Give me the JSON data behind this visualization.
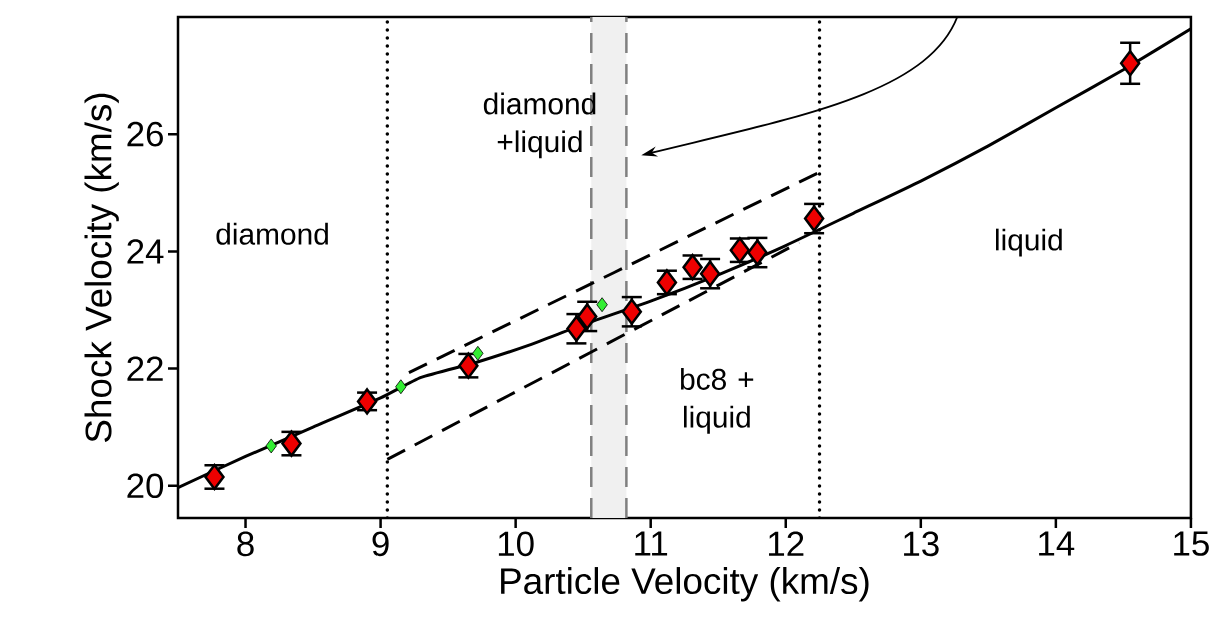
{
  "chart_data": {
    "type": "scatter",
    "xlabel": "Particle Velocity (km/s)",
    "ylabel": "Shock Velocity (km/s)",
    "xlim": [
      7.5,
      15
    ],
    "ylim": [
      19.45,
      28
    ],
    "xticks": [
      8,
      9,
      10,
      11,
      12,
      13,
      14,
      15
    ],
    "yticks": [
      20,
      22,
      24,
      26
    ],
    "annotations": [
      "diamond",
      "diamond +liquid",
      "bc8 + liquid",
      "liquid"
    ],
    "ref_lines": [
      {
        "axis": "x",
        "value": 9.05,
        "color": "#000000",
        "line_style": "dotted"
      },
      {
        "axis": "x",
        "value": 12.25,
        "color": "#000000",
        "line_style": "dotted"
      },
      {
        "axis": "x",
        "value": 10.56,
        "color": "#808080",
        "line_style": "dashed"
      },
      {
        "axis": "x",
        "value": 10.82,
        "color": "#808080",
        "line_style": "dashed"
      }
    ],
    "bands": [
      {
        "axis": "x",
        "from": 10.56,
        "to": 10.82,
        "color": "#f0f0f0"
      }
    ],
    "series": [
      {
        "type": "line",
        "color": "#000000",
        "line_style": "solid",
        "marker": "none",
        "x": [
          7.5,
          8.0,
          8.5,
          9.0,
          9.3,
          9.7,
          10.1,
          10.5,
          11.0,
          11.5,
          12.0,
          12.5,
          13.0,
          13.5,
          14.0,
          14.5,
          15.0
        ],
        "values": [
          19.97,
          20.5,
          21.0,
          21.5,
          21.85,
          22.1,
          22.4,
          22.75,
          23.15,
          23.6,
          24.1,
          24.65,
          25.2,
          25.8,
          26.45,
          27.1,
          27.8
        ]
      },
      {
        "type": "line",
        "color": "#000000",
        "line_style": "dashed",
        "marker": "none",
        "x": [
          9.21,
          12.25
        ],
        "values": [
          21.93,
          25.35
        ]
      },
      {
        "type": "line",
        "color": "#000000",
        "line_style": "dashed",
        "marker": "none",
        "x": [
          9.05,
          12.1
        ],
        "values": [
          20.45,
          24.15
        ]
      },
      {
        "color": "#33ee33",
        "marker": "diamond",
        "x": [
          8.19,
          9.15,
          9.72,
          10.64
        ],
        "values": [
          20.68,
          21.69,
          22.26,
          23.09
        ]
      },
      {
        "color": "#ee0000",
        "marker": "diamond",
        "x": [
          7.77,
          8.34,
          8.9,
          9.65,
          10.45,
          10.53,
          10.86,
          11.12,
          11.31,
          11.44,
          11.66,
          11.79,
          12.21,
          14.55
        ],
        "values": [
          20.15,
          20.72,
          21.44,
          22.05,
          22.68,
          22.89,
          22.97,
          23.47,
          23.73,
          23.62,
          24.02,
          23.98,
          24.56,
          27.21
        ],
        "errors": [
          0.2,
          0.2,
          0.15,
          0.2,
          0.25,
          0.25,
          0.25,
          0.2,
          0.2,
          0.25,
          0.2,
          0.25,
          0.25,
          0.35
        ]
      }
    ]
  }
}
